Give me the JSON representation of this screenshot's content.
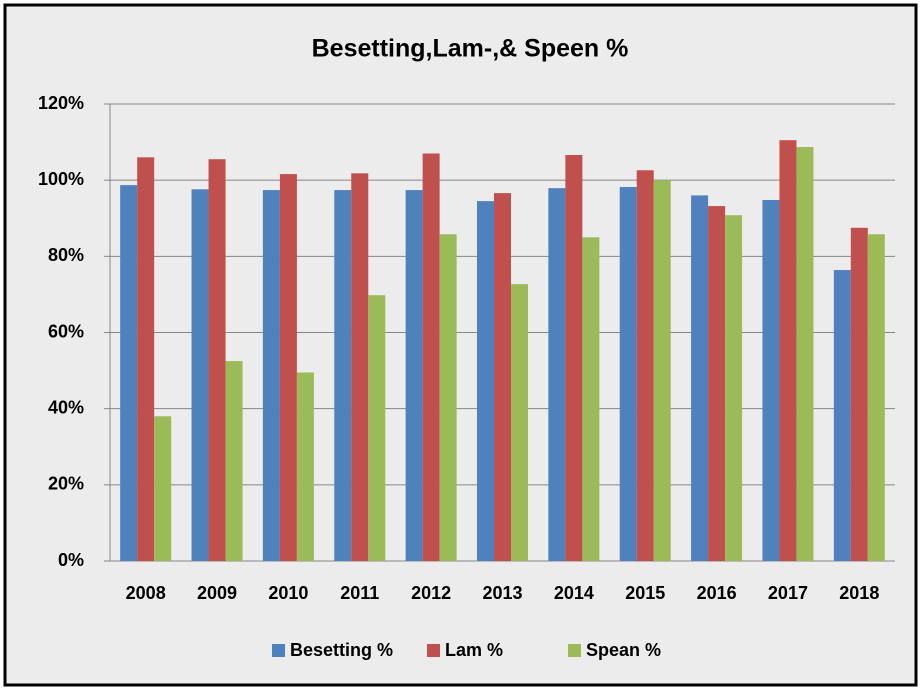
{
  "chart_data": {
    "type": "bar",
    "title": "Besetting,Lam-,& Speen %",
    "categories": [
      "2008",
      "2009",
      "2010",
      "2011",
      "2012",
      "2013",
      "2014",
      "2015",
      "2016",
      "2017",
      "2018"
    ],
    "series": [
      {
        "name": "Besetting %",
        "color": "#4f81bd",
        "values": [
          98.7,
          97.6,
          97.4,
          97.4,
          97.4,
          94.5,
          97.9,
          98.2,
          96,
          94.8,
          76.4
        ]
      },
      {
        "name": "Lam %",
        "color": "#c0504d",
        "values": [
          106,
          105.5,
          101.6,
          101.8,
          107,
          96.6,
          106.6,
          102.6,
          93.2,
          110.5,
          87.5
        ]
      },
      {
        "name": "Spean %",
        "color": "#9bbb59",
        "values": [
          38,
          52.5,
          49.5,
          69.8,
          85.8,
          72.7,
          85,
          100,
          90.8,
          108.7,
          85.8
        ]
      }
    ],
    "ylim": [
      0,
      120
    ],
    "yticks": [
      {
        "value": 0,
        "label": "0%"
      },
      {
        "value": 20,
        "label": "20%"
      },
      {
        "value": 40,
        "label": "40%"
      },
      {
        "value": 60,
        "label": "60%"
      },
      {
        "value": 80,
        "label": "80%"
      },
      {
        "value": 100,
        "label": "100%"
      },
      {
        "value": 120,
        "label": "120%"
      }
    ],
    "grid": true,
    "legend": "bottom"
  }
}
